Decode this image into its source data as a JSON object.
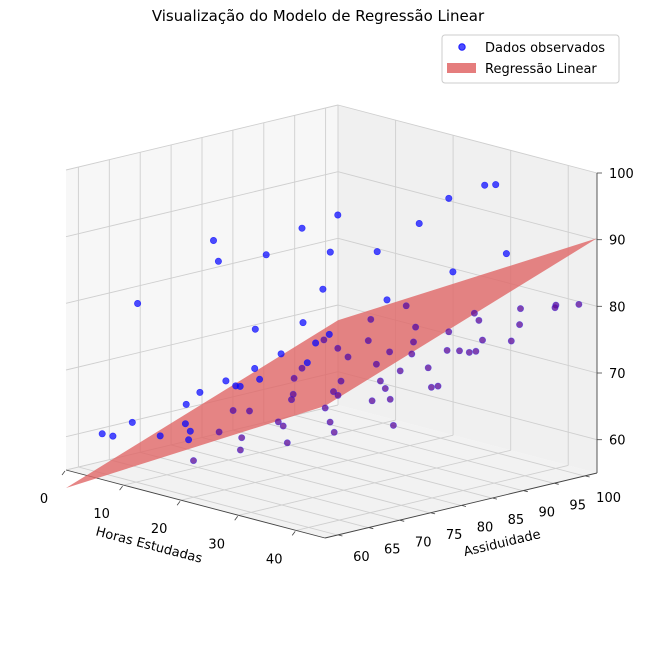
{
  "chart_data": {
    "type": "scatter",
    "projection": "3d",
    "title": "Visualização do Modelo de Regressão Linear",
    "xlabel": "Horas Estudadas",
    "ylabel": "Assiduidade",
    "zlabel": "",
    "xlim": [
      0,
      45
    ],
    "ylim": [
      58,
      102
    ],
    "zlim": [
      55,
      100
    ],
    "x_ticks": [
      0,
      10,
      20,
      30,
      40
    ],
    "y_ticks": [
      60,
      65,
      70,
      75,
      80,
      85,
      90,
      95,
      100
    ],
    "z_ticks": [
      60,
      70,
      80,
      90,
      100
    ],
    "grid": true,
    "legend": {
      "placement": "top-right",
      "entries": [
        "Dados observados",
        "Regressão Linear"
      ]
    },
    "colors": {
      "points": "#0000ff",
      "plane": "#e06666"
    },
    "regression_plane": {
      "intercept": 32,
      "coef_horas": 0.5,
      "coef_assiduidade": 0.35
    },
    "series": [
      {
        "name": "Dados observados",
        "points": [
          [
            2,
            62,
            60
          ],
          [
            4,
            65,
            61.5
          ],
          [
            6,
            60,
            61
          ],
          [
            8,
            70,
            64
          ],
          [
            10,
            68,
            62
          ],
          [
            12,
            75,
            66.5
          ],
          [
            14,
            72,
            64
          ],
          [
            16,
            80,
            67.5
          ],
          [
            18,
            78,
            66
          ],
          [
            20,
            85,
            70.5
          ],
          [
            22,
            82,
            68
          ],
          [
            24,
            88,
            71.5
          ],
          [
            26,
            90,
            73
          ],
          [
            28,
            86,
            70
          ],
          [
            30,
            92,
            75
          ],
          [
            32,
            95,
            76.5
          ],
          [
            34,
            90,
            73.5
          ],
          [
            36,
            98,
            78.5
          ],
          [
            38,
            96,
            77
          ],
          [
            40,
            100,
            79.5
          ],
          [
            42,
            98,
            80
          ],
          [
            44,
            100,
            80.5
          ],
          [
            5,
            75,
            64
          ],
          [
            7,
            82,
            66.5
          ],
          [
            9,
            90,
            69
          ],
          [
            11,
            63,
            61.5
          ],
          [
            13,
            66,
            62
          ],
          [
            15,
            88,
            70
          ],
          [
            17,
            62,
            62.5
          ],
          [
            19,
            70,
            65.5
          ],
          [
            21,
            95,
            73
          ],
          [
            23,
            65,
            63.5
          ],
          [
            25,
            78,
            68
          ],
          [
            27,
            68,
            65.5
          ],
          [
            29,
            75,
            69
          ],
          [
            31,
            80,
            70.5
          ],
          [
            33,
            70,
            67
          ],
          [
            35,
            84,
            72.5
          ],
          [
            37,
            76,
            70
          ],
          [
            39,
            88,
            75
          ],
          [
            41,
            80,
            72
          ],
          [
            43,
            90,
            77
          ],
          [
            3,
            90,
            66
          ],
          [
            6,
            95,
            68.5
          ],
          [
            10,
            98,
            71
          ],
          [
            14,
            100,
            73.5
          ],
          [
            20,
            60,
            60.5
          ],
          [
            26,
            62,
            63
          ],
          [
            32,
            64,
            65
          ],
          [
            38,
            66,
            67.5
          ],
          [
            44,
            70,
            69
          ],
          [
            12,
            85,
            67
          ],
          [
            16,
            92,
            70.5
          ],
          [
            22,
            74,
            67
          ],
          [
            28,
            98,
            76
          ],
          [
            34,
            78,
            70.5
          ],
          [
            40,
            86,
            75.5
          ],
          [
            18,
            66,
            63
          ],
          [
            24,
            70,
            65
          ],
          [
            30,
            72,
            68
          ],
          [
            36,
            74,
            70
          ],
          [
            42,
            78,
            72.5
          ],
          [
            8,
            78,
            65
          ],
          [
            2,
            82,
            63.5
          ],
          [
            4,
            96,
            67
          ],
          [
            26,
            84,
            71
          ],
          [
            30,
            86,
            73
          ],
          [
            34,
            88,
            74
          ],
          [
            38,
            90,
            76
          ],
          [
            10,
            80,
            66
          ],
          [
            14,
            84,
            68.5
          ],
          [
            2,
            80,
            85
          ],
          [
            5,
            78,
            83
          ],
          [
            9,
            82,
            84
          ],
          [
            12,
            85,
            88
          ],
          [
            15,
            88,
            90
          ],
          [
            18,
            84,
            86
          ],
          [
            21,
            80,
            82
          ],
          [
            24,
            86,
            87
          ],
          [
            27,
            90,
            91
          ],
          [
            30,
            92,
            95
          ],
          [
            33,
            95,
            97
          ],
          [
            36,
            94,
            98
          ],
          [
            6,
            64,
            80
          ],
          [
            20,
            70,
            78
          ],
          [
            24,
            74,
            79
          ],
          [
            30,
            82,
            82
          ],
          [
            35,
            88,
            86
          ],
          [
            40,
            92,
            89
          ]
        ]
      }
    ]
  }
}
